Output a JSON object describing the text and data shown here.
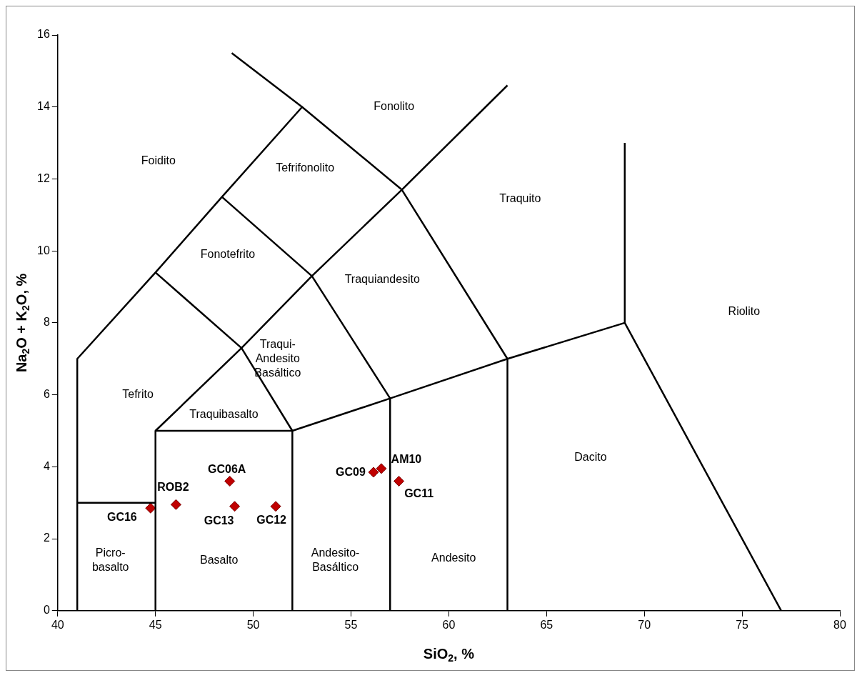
{
  "chart_data": {
    "type": "scatter",
    "xlabel": "SiO$_{2}$, %",
    "ylabel": "Na$_{2}$O + K$_{2}$O, %",
    "xlim": [
      40,
      80
    ],
    "xticks": [
      40,
      45,
      50,
      55,
      60,
      65,
      70,
      75,
      80
    ],
    "ylim": [
      0,
      16
    ],
    "yticks": [
      0,
      2,
      4,
      6,
      8,
      10,
      12,
      14,
      16
    ],
    "grid": false,
    "legend": false,
    "series": [
      {
        "type": "line",
        "color": "#000000",
        "marker": "none",
        "line_style": "solid",
        "x": [
          41,
          41,
          45,
          48.4,
          52.5,
          57.6,
          63,
          69,
          77
        ],
        "values": [
          0,
          7,
          9.4,
          11.5,
          14,
          11.7,
          7,
          8,
          0
        ]
      },
      {
        "type": "line",
        "color": "#000000",
        "marker": "none",
        "line_style": "solid",
        "x": [
          48.9,
          52.5
        ],
        "values": [
          15.5,
          14
        ]
      },
      {
        "type": "line",
        "color": "#000000",
        "marker": "none",
        "line_style": "solid",
        "x": [
          41,
          45
        ],
        "values": [
          3,
          3
        ]
      },
      {
        "type": "line",
        "color": "#000000",
        "marker": "none",
        "line_style": "solid",
        "x": [
          45,
          45,
          52,
          57,
          63
        ],
        "values": [
          0,
          5,
          5,
          5.9,
          7
        ]
      },
      {
        "type": "line",
        "color": "#000000",
        "marker": "none",
        "line_style": "solid",
        "x": [
          52,
          52
        ],
        "values": [
          0,
          5
        ]
      },
      {
        "type": "line",
        "color": "#000000",
        "marker": "none",
        "line_style": "solid",
        "x": [
          57,
          57
        ],
        "values": [
          0,
          5.9
        ]
      },
      {
        "type": "line",
        "color": "#000000",
        "marker": "none",
        "line_style": "solid",
        "x": [
          63,
          63
        ],
        "values": [
          0,
          7
        ]
      },
      {
        "type": "line",
        "color": "#000000",
        "marker": "none",
        "line_style": "solid",
        "x": [
          69,
          69
        ],
        "values": [
          8,
          13
        ]
      },
      {
        "type": "line",
        "color": "#000000",
        "marker": "none",
        "line_style": "solid",
        "x": [
          45,
          49.4,
          52
        ],
        "values": [
          5,
          7.3,
          5
        ]
      },
      {
        "type": "line",
        "color": "#000000",
        "marker": "none",
        "line_style": "solid",
        "x": [
          45,
          49.4,
          53,
          57
        ],
        "values": [
          9.4,
          7.3,
          9.3,
          5.9
        ]
      },
      {
        "type": "line",
        "color": "#000000",
        "marker": "none",
        "line_style": "solid",
        "x": [
          48.4,
          53,
          57.6,
          63
        ],
        "values": [
          11.5,
          9.3,
          11.7,
          14.6
        ]
      },
      {
        "type": "scatter",
        "color": "#c00000",
        "marker": "diamond",
        "x": [
          44.75,
          46.05,
          48.8,
          49.05,
          51.15,
          56.15,
          56.55,
          57.45
        ],
        "values": [
          2.85,
          2.95,
          3.6,
          2.9,
          2.9,
          3.85,
          3.95,
          3.6
        ],
        "value_labels": [
          "GC16",
          "ROB2",
          "GC06A",
          "GC13",
          "GC12",
          "GC09",
          "AM10",
          "GC11"
        ]
      }
    ],
    "annotations": [
      "Foidito",
      "Fonolito",
      "Tefrifonolito",
      "Traquito",
      "Fonotefrito",
      "Traquiandesito",
      "Riolito",
      "Traqui-\nAndesito\nBasáltico",
      "Tefrito",
      "Traquibasalto",
      "Dacito",
      "Picro-\nbasalto",
      "Basalto",
      "Andesito-\nBasáltico",
      "Andesito"
    ]
  }
}
